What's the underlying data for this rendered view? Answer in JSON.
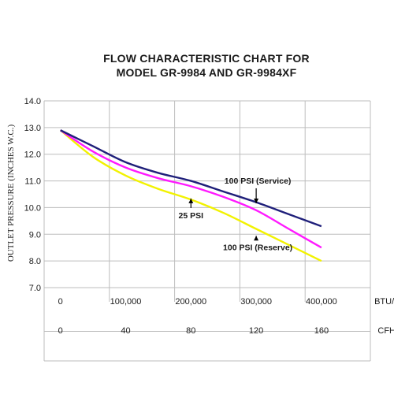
{
  "chart_data": {
    "type": "line",
    "title_lines": [
      "FLOW CHARACTERISTIC CHART FOR",
      "MODEL GR-9984 AND GR-9984XF"
    ],
    "ylabel": "OUTLET PRESSURE (INCHES W.C.)",
    "ylim": [
      7.0,
      14.0
    ],
    "y_ticks": [
      "14.0",
      "13.0",
      "12.0",
      "11.0",
      "10.0",
      "9.0",
      "8.0",
      "7.0"
    ],
    "x_axis_btu": {
      "labels": [
        "0",
        "100,000",
        "200,000",
        "300,000",
        "400,000"
      ],
      "unit": "BTU/h"
    },
    "x_axis_cfh": {
      "labels": [
        "0",
        "40",
        "80",
        "120",
        "160"
      ],
      "unit": "CFH"
    },
    "xlim_btu": [
      -25000,
      475000
    ],
    "grid": true,
    "series": [
      {
        "name": "100 PSI (Service)",
        "color": "#1f1f7a",
        "x": [
          0,
          50000,
          100000,
          150000,
          200000,
          250000,
          300000,
          350000,
          400000
        ],
        "y": [
          12.9,
          12.3,
          11.7,
          11.3,
          11.0,
          10.6,
          10.2,
          9.75,
          9.3
        ]
      },
      {
        "name": "25 PSI",
        "color": "#ff1aff",
        "x": [
          0,
          50000,
          100000,
          150000,
          200000,
          250000,
          300000,
          350000,
          400000
        ],
        "y": [
          12.9,
          12.1,
          11.5,
          11.1,
          10.8,
          10.4,
          9.9,
          9.2,
          8.5
        ]
      },
      {
        "name": "100 PSI (Reserve)",
        "color": "#f2f200",
        "x": [
          0,
          50000,
          100000,
          150000,
          200000,
          250000,
          300000,
          350000,
          400000
        ],
        "y": [
          12.9,
          11.9,
          11.2,
          10.7,
          10.3,
          9.8,
          9.2,
          8.6,
          8.0
        ]
      }
    ],
    "annotations": [
      {
        "text": "100 PSI (Service)",
        "arrow_to": {
          "x": 300000,
          "y": 10.1
        }
      },
      {
        "text": "25 PSI",
        "arrow_to": {
          "x": 200000,
          "y": 10.4
        }
      },
      {
        "text": "100 PSI (Reserve)",
        "arrow_to": {
          "x": 300000,
          "y": 9.0
        }
      }
    ]
  }
}
